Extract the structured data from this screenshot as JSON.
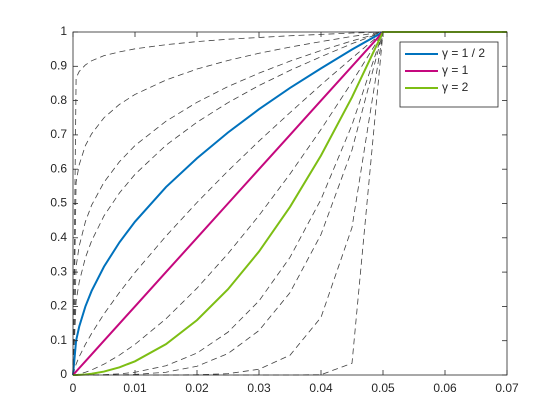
{
  "chart_data": {
    "type": "line",
    "x": [
      0,
      0.0005,
      0.001,
      0.002,
      0.003,
      0.005,
      0.0075,
      0.01,
      0.015,
      0.02,
      0.025,
      0.03,
      0.035,
      0.04,
      0.045,
      0.05,
      0.07
    ],
    "xlim": [
      0,
      0.07
    ],
    "xticks": [
      0,
      0.01,
      0.02,
      0.03,
      0.04,
      0.05,
      0.06,
      0.07
    ],
    "ylim": [
      0,
      1
    ],
    "yticks": [
      0,
      0.1,
      0.2,
      0.3,
      0.4,
      0.5,
      0.6,
      0.7,
      0.8,
      0.9,
      1
    ],
    "legend": "upper right",
    "grid": false,
    "series": [
      {
        "color": "#404040",
        "style": "dashed",
        "values": [
          0,
          0.866,
          0.885,
          0.904,
          0.916,
          0.931,
          0.942,
          0.951,
          0.963,
          0.972,
          0.979,
          0.984,
          0.989,
          0.993,
          0.997,
          1,
          1
        ]
      },
      {
        "color": "#404040",
        "style": "dashed",
        "values": [
          0,
          0.562,
          0.613,
          0.669,
          0.703,
          0.75,
          0.789,
          0.818,
          0.86,
          0.892,
          0.917,
          0.938,
          0.956,
          0.972,
          0.987,
          1,
          1
        ]
      },
      {
        "color": "#404040",
        "style": "dashed",
        "values": [
          0,
          0.316,
          0.376,
          0.447,
          0.495,
          0.562,
          0.622,
          0.669,
          0.74,
          0.795,
          0.841,
          0.88,
          0.915,
          0.946,
          0.974,
          1,
          1
        ]
      },
      {
        "color": "#404040",
        "style": "dashed",
        "values": [
          0,
          0.215,
          0.271,
          0.342,
          0.391,
          0.464,
          0.531,
          0.585,
          0.67,
          0.737,
          0.794,
          0.844,
          0.888,
          0.928,
          0.966,
          1,
          1
        ]
      },
      {
        "color": "#404040",
        "style": "dashed",
        "values": [
          0,
          0.0316,
          0.0532,
          0.0894,
          0.121,
          0.178,
          0.241,
          0.299,
          0.405,
          0.503,
          0.595,
          0.682,
          0.765,
          0.846,
          0.924,
          1,
          1
        ]
      },
      {
        "color": "#404040",
        "style": "dashed",
        "values": [
          0,
          0.001,
          0.00283,
          0.008,
          0.0147,
          0.0316,
          0.0581,
          0.0894,
          0.164,
          0.253,
          0.354,
          0.465,
          0.586,
          0.716,
          0.854,
          1,
          1
        ]
      },
      {
        "color": "#404040",
        "style": "dashed",
        "values": [
          0,
          1e-06,
          8e-06,
          6.4e-05,
          0.000216,
          0.001,
          0.003375,
          0.008,
          0.027,
          0.064,
          0.125,
          0.216,
          0.343,
          0.512,
          0.729,
          1,
          1
        ]
      },
      {
        "color": "#404040",
        "style": "dashed",
        "values": [
          0,
          0,
          0,
          2.6e-06,
          1.3e-05,
          0.0001,
          0.000506,
          0.0016,
          0.0081,
          0.0256,
          0.0625,
          0.1296,
          0.2401,
          0.4096,
          0.6561,
          1,
          1
        ]
      },
      {
        "color": "#404040",
        "style": "dashed",
        "values": [
          0,
          0,
          0,
          0,
          0,
          0,
          0,
          2.6e-06,
          6.56e-05,
          0.000655,
          0.0039,
          0.0168,
          0.0576,
          0.168,
          0.43,
          1,
          1
        ]
      },
      {
        "color": "#404040",
        "style": "dashed",
        "values": [
          0,
          0,
          0,
          0,
          0,
          0,
          0,
          0,
          0,
          0,
          0,
          0,
          0,
          0.0008,
          0.0343,
          1,
          1
        ]
      },
      {
        "name": "γ = 1 / 2",
        "color": "#0072BD",
        "style": "solid",
        "values": [
          0,
          0.1,
          0.141,
          0.2,
          0.245,
          0.316,
          0.387,
          0.447,
          0.548,
          0.632,
          0.707,
          0.775,
          0.837,
          0.894,
          0.949,
          1,
          1
        ]
      },
      {
        "name": "γ = 1",
        "color": "#C5087E",
        "style": "solid",
        "values": [
          0,
          0.01,
          0.02,
          0.04,
          0.06,
          0.1,
          0.15,
          0.2,
          0.3,
          0.4,
          0.5,
          0.6,
          0.7,
          0.8,
          0.9,
          1,
          1
        ]
      },
      {
        "name": "γ = 2",
        "color": "#7DBE14",
        "style": "solid",
        "values": [
          0,
          0.0001,
          0.0004,
          0.0016,
          0.0036,
          0.01,
          0.0225,
          0.04,
          0.09,
          0.16,
          0.25,
          0.36,
          0.49,
          0.64,
          0.81,
          1,
          1
        ]
      }
    ]
  }
}
